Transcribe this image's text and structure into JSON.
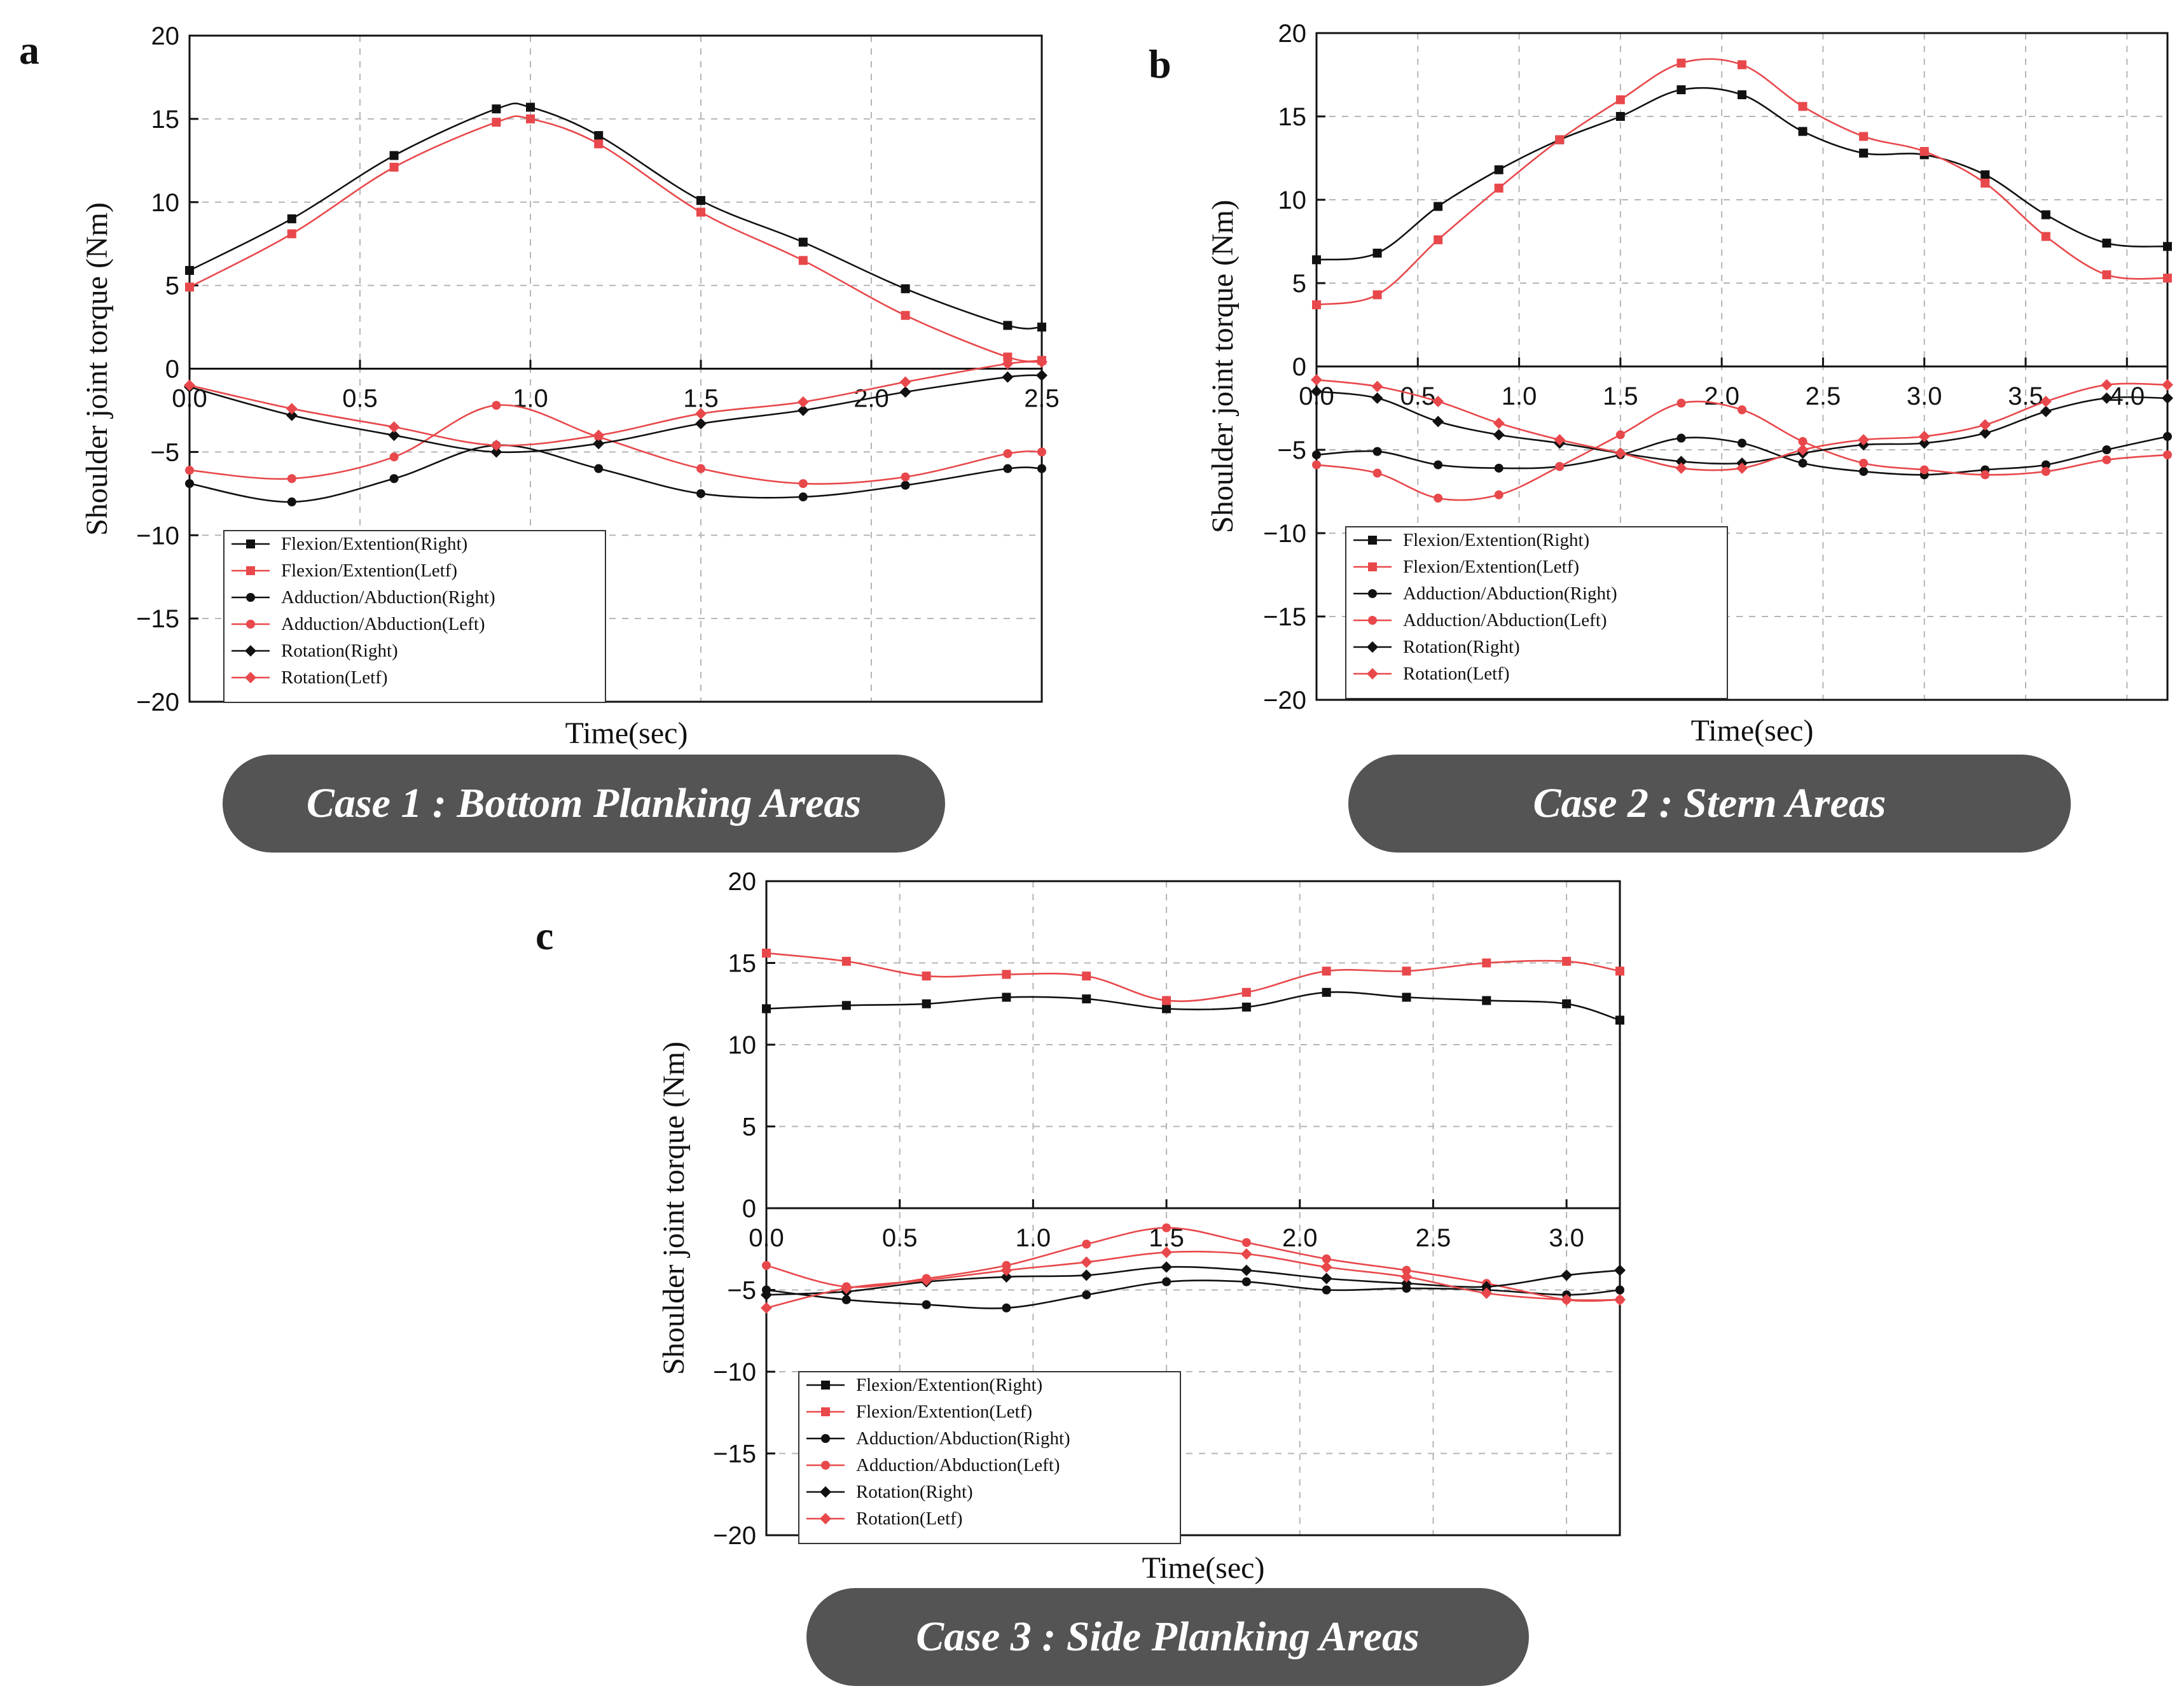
{
  "chart_data": [
    {
      "type": "line",
      "panel": "a",
      "banner": "Case 1 : Bottom Planking Areas",
      "xlabel": "Time(sec)",
      "ylabel": "Shoulder joint torque (Nm)",
      "xlim": [
        0,
        2.5
      ],
      "ylim": [
        -20,
        20
      ],
      "x_ticks": [
        "0.0",
        "0.5",
        "1.0",
        "1.5",
        "2.0",
        "2.5"
      ],
      "y_ticks": [
        "−20",
        "−15",
        "−10",
        "−5",
        "0",
        "5",
        "10",
        "15",
        "20"
      ],
      "legend_position": "lower-left",
      "series": [
        {
          "name": "Flexion/Extention(Right)",
          "color": "#111111",
          "marker": "square",
          "x": [
            0.0,
            0.3,
            0.6,
            0.9,
            1.0,
            1.2,
            1.5,
            1.8,
            2.1,
            2.4,
            2.5
          ],
          "y": [
            5.9,
            9.0,
            12.8,
            15.6,
            15.7,
            14.0,
            10.1,
            7.6,
            4.8,
            2.6,
            2.5
          ]
        },
        {
          "name": "Flexion/Extention(Letf)",
          "color": "#e8484b",
          "marker": "square",
          "x": [
            0.0,
            0.3,
            0.6,
            0.9,
            1.0,
            1.2,
            1.5,
            1.8,
            2.1,
            2.4,
            2.5
          ],
          "y": [
            4.9,
            8.1,
            12.1,
            14.8,
            15.0,
            13.5,
            9.4,
            6.5,
            3.2,
            0.7,
            0.5
          ]
        },
        {
          "name": "Adduction/Abduction(Right)",
          "color": "#111111",
          "marker": "circle",
          "x": [
            0.0,
            0.3,
            0.6,
            0.9,
            1.2,
            1.5,
            1.8,
            2.1,
            2.4,
            2.5
          ],
          "y": [
            -6.9,
            -8.0,
            -6.6,
            -4.6,
            -6.0,
            -7.5,
            -7.7,
            -7.0,
            -6.0,
            -6.0
          ]
        },
        {
          "name": "Adduction/Abduction(Left)",
          "color": "#e8484b",
          "marker": "circle",
          "x": [
            0.0,
            0.3,
            0.6,
            0.9,
            1.2,
            1.5,
            1.8,
            2.1,
            2.4,
            2.5
          ],
          "y": [
            -6.1,
            -6.6,
            -5.3,
            -2.2,
            -4.1,
            -6.0,
            -6.9,
            -6.5,
            -5.1,
            -5.0
          ]
        },
        {
          "name": "Rotation(Right)",
          "color": "#111111",
          "marker": "diamond",
          "x": [
            0.0,
            0.3,
            0.6,
            0.9,
            1.2,
            1.5,
            1.8,
            2.1,
            2.4,
            2.5
          ],
          "y": [
            -1.1,
            -2.8,
            -4.0,
            -5.0,
            -4.5,
            -3.3,
            -2.5,
            -1.4,
            -0.5,
            -0.4
          ]
        },
        {
          "name": "Rotation(Letf)",
          "color": "#e8484b",
          "marker": "diamond",
          "x": [
            0.0,
            0.3,
            0.6,
            0.9,
            1.2,
            1.5,
            1.8,
            2.1,
            2.4,
            2.5
          ],
          "y": [
            -1.0,
            -2.4,
            -3.5,
            -4.6,
            -4.0,
            -2.7,
            -2.0,
            -0.8,
            0.3,
            0.4
          ]
        }
      ]
    },
    {
      "type": "line",
      "panel": "b",
      "banner": "Case 2 : Stern Areas",
      "xlabel": "Time(sec)",
      "ylabel": "Shoulder joint torque (Nm)",
      "xlim": [
        0,
        4.2
      ],
      "ylim": [
        -20,
        20
      ],
      "x_ticks": [
        "0.0",
        "0.5",
        "1.0",
        "1.5",
        "2.0",
        "2.5",
        "3.0",
        "3.5",
        "4.0"
      ],
      "y_ticks": [
        "−20",
        "−15",
        "−10",
        "−5",
        "0",
        "5",
        "10",
        "15",
        "20"
      ],
      "legend_position": "lower-left",
      "series": [
        {
          "name": "Flexion/Extention(Right)",
          "color": "#111111",
          "marker": "square",
          "x": [
            0.0,
            0.3,
            0.6,
            0.9,
            1.2,
            1.5,
            1.8,
            2.1,
            2.4,
            2.7,
            3.0,
            3.3,
            3.6,
            3.9,
            4.2
          ],
          "y": [
            6.4,
            6.8,
            9.6,
            11.8,
            13.6,
            15.0,
            16.6,
            16.3,
            14.1,
            12.8,
            12.7,
            11.5,
            9.1,
            7.4,
            7.2
          ]
        },
        {
          "name": "Flexion/Extention(Letf)",
          "color": "#e8484b",
          "marker": "square",
          "x": [
            0.0,
            0.3,
            0.6,
            0.9,
            1.2,
            1.5,
            1.8,
            2.1,
            2.4,
            2.7,
            3.0,
            3.3,
            3.6,
            3.9,
            4.2
          ],
          "y": [
            3.7,
            4.3,
            7.6,
            10.7,
            13.6,
            16.0,
            18.2,
            18.1,
            15.6,
            13.8,
            12.9,
            11.0,
            7.8,
            5.5,
            5.3
          ]
        },
        {
          "name": "Adduction/Abduction(Right)",
          "color": "#111111",
          "marker": "circle",
          "x": [
            0.0,
            0.3,
            0.6,
            0.9,
            1.2,
            1.5,
            1.8,
            2.1,
            2.4,
            2.7,
            3.0,
            3.3,
            3.6,
            3.9,
            4.2
          ],
          "y": [
            -5.3,
            -5.1,
            -5.9,
            -6.1,
            -6.0,
            -5.3,
            -4.3,
            -4.6,
            -5.8,
            -6.3,
            -6.5,
            -6.2,
            -5.9,
            -5.0,
            -4.2
          ]
        },
        {
          "name": "Adduction/Abduction(Left)",
          "color": "#e8484b",
          "marker": "circle",
          "x": [
            0.0,
            0.3,
            0.6,
            0.9,
            1.2,
            1.5,
            1.8,
            2.1,
            2.4,
            2.7,
            3.0,
            3.3,
            3.6,
            3.9,
            4.2
          ],
          "y": [
            -5.9,
            -6.4,
            -7.9,
            -7.7,
            -6.0,
            -4.1,
            -2.2,
            -2.6,
            -4.5,
            -5.8,
            -6.2,
            -6.5,
            -6.3,
            -5.6,
            -5.3
          ]
        },
        {
          "name": "Rotation(Right)",
          "color": "#111111",
          "marker": "diamond",
          "x": [
            0.0,
            0.3,
            0.6,
            0.9,
            1.2,
            1.5,
            1.8,
            2.1,
            2.4,
            2.7,
            3.0,
            3.3,
            3.6,
            3.9,
            4.2
          ],
          "y": [
            -1.5,
            -1.9,
            -3.3,
            -4.1,
            -4.6,
            -5.2,
            -5.7,
            -5.8,
            -5.2,
            -4.7,
            -4.6,
            -4.0,
            -2.7,
            -1.9,
            -1.9
          ]
        },
        {
          "name": "Rotation(Letf)",
          "color": "#e8484b",
          "marker": "diamond",
          "x": [
            0.0,
            0.3,
            0.6,
            0.9,
            1.2,
            1.5,
            1.8,
            2.1,
            2.4,
            2.7,
            3.0,
            3.3,
            3.6,
            3.9,
            4.2
          ],
          "y": [
            -0.8,
            -1.2,
            -2.1,
            -3.4,
            -4.4,
            -5.2,
            -6.1,
            -6.1,
            -5.0,
            -4.4,
            -4.2,
            -3.5,
            -2.1,
            -1.1,
            -1.1
          ]
        }
      ]
    },
    {
      "type": "line",
      "panel": "c",
      "banner": "Case 3 : Side Planking Areas",
      "xlabel": "Time(sec)",
      "ylabel": "Shoulder joint torque (Nm)",
      "xlim": [
        0,
        3.2
      ],
      "ylim": [
        -20,
        20
      ],
      "x_ticks": [
        "0.0",
        "0.5",
        "1.0",
        "1.5",
        "2.0",
        "2.5",
        "3.0"
      ],
      "y_ticks": [
        "−20",
        "−15",
        "−10",
        "−5",
        "0",
        "5",
        "10",
        "15",
        "20"
      ],
      "legend_position": "lower-left",
      "series": [
        {
          "name": "Flexion/Extention(Right)",
          "color": "#111111",
          "marker": "square",
          "x": [
            0.0,
            0.3,
            0.6,
            0.9,
            1.2,
            1.5,
            1.8,
            2.1,
            2.4,
            2.7,
            3.0,
            3.2
          ],
          "y": [
            12.2,
            12.4,
            12.5,
            12.9,
            12.8,
            12.2,
            12.3,
            13.2,
            12.9,
            12.7,
            12.5,
            11.5
          ]
        },
        {
          "name": "Flexion/Extention(Letf)",
          "color": "#e8484b",
          "marker": "square",
          "x": [
            0.0,
            0.3,
            0.6,
            0.9,
            1.2,
            1.5,
            1.8,
            2.1,
            2.4,
            2.7,
            3.0,
            3.2
          ],
          "y": [
            15.6,
            15.1,
            14.2,
            14.3,
            14.2,
            12.7,
            13.2,
            14.5,
            14.5,
            15.0,
            15.1,
            14.5
          ]
        },
        {
          "name": "Adduction/Abduction(Right)",
          "color": "#111111",
          "marker": "circle",
          "x": [
            0.0,
            0.3,
            0.6,
            0.9,
            1.2,
            1.5,
            1.8,
            2.1,
            2.4,
            2.7,
            3.0,
            3.2
          ],
          "y": [
            -5.0,
            -5.6,
            -5.9,
            -6.1,
            -5.3,
            -4.5,
            -4.5,
            -5.0,
            -4.9,
            -5.0,
            -5.3,
            -5.0
          ]
        },
        {
          "name": "Adduction/Abduction(Left)",
          "color": "#e8484b",
          "marker": "circle",
          "x": [
            0.0,
            0.3,
            0.6,
            0.9,
            1.2,
            1.5,
            1.8,
            2.1,
            2.4,
            2.7,
            3.0,
            3.2
          ],
          "y": [
            -3.5,
            -4.8,
            -4.3,
            -3.5,
            -2.2,
            -1.2,
            -2.1,
            -3.1,
            -3.8,
            -4.6,
            -5.6,
            -5.6
          ]
        },
        {
          "name": "Rotation(Right)",
          "color": "#111111",
          "marker": "diamond",
          "x": [
            0.0,
            0.3,
            0.6,
            0.9,
            1.2,
            1.5,
            1.8,
            2.1,
            2.4,
            2.7,
            3.0,
            3.2
          ],
          "y": [
            -5.3,
            -5.1,
            -4.5,
            -4.2,
            -4.1,
            -3.6,
            -3.8,
            -4.3,
            -4.6,
            -4.8,
            -4.1,
            -3.8
          ]
        },
        {
          "name": "Rotation(Letf)",
          "color": "#e8484b",
          "marker": "diamond",
          "x": [
            0.0,
            0.3,
            0.6,
            0.9,
            1.2,
            1.5,
            1.8,
            2.1,
            2.4,
            2.7,
            3.0,
            3.2
          ],
          "y": [
            -6.1,
            -4.9,
            -4.4,
            -3.8,
            -3.3,
            -2.7,
            -2.8,
            -3.6,
            -4.2,
            -5.2,
            -5.6,
            -5.6
          ]
        }
      ]
    }
  ]
}
